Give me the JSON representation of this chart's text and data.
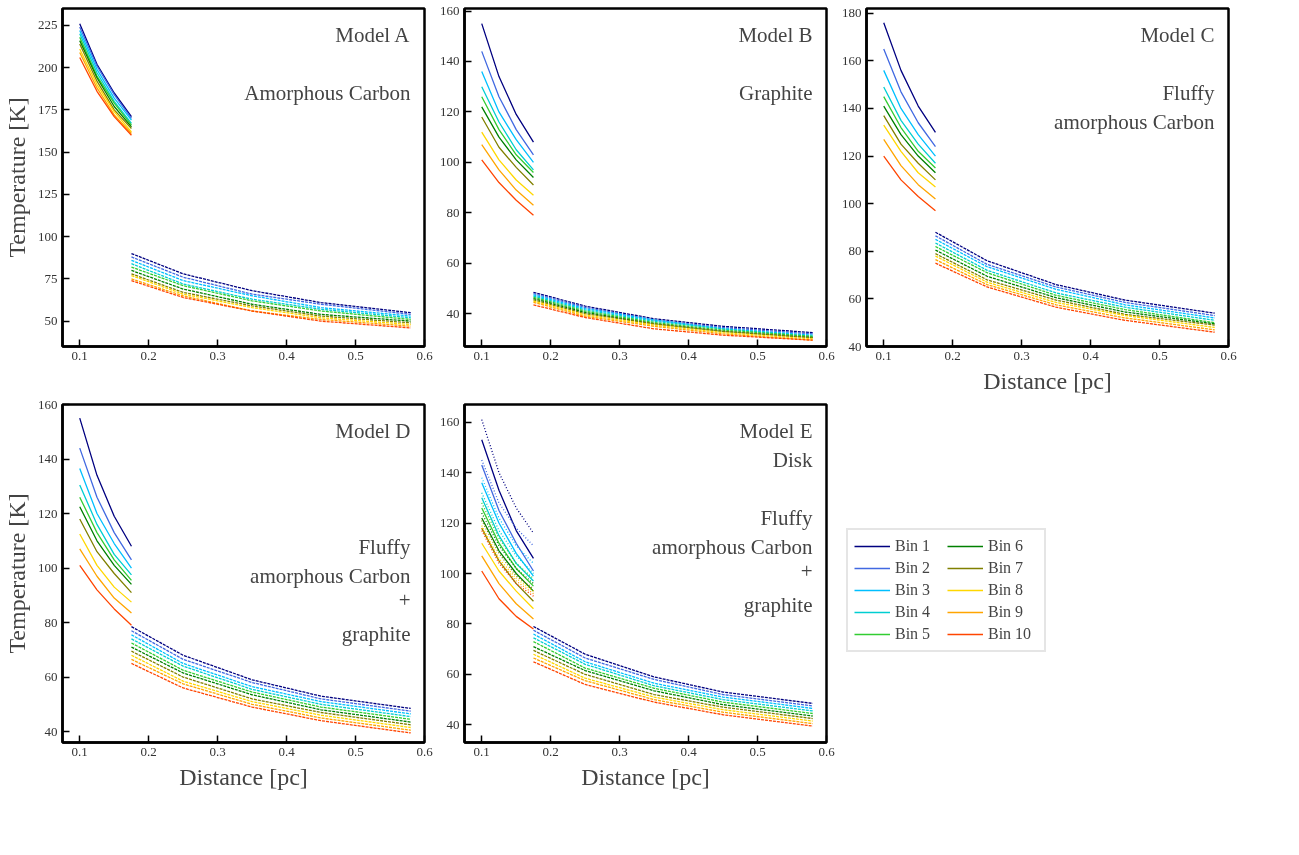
{
  "chart_data": [
    {
      "type": "line",
      "ylabel": "Temperature [K]",
      "annotations": [
        "Model A",
        "Amorphous Carbon"
      ],
      "xlim": [
        0.075,
        0.6
      ],
      "xticks": [
        0.1,
        0.2,
        0.3,
        0.4,
        0.5,
        0.6
      ],
      "ylim": [
        35,
        235
      ],
      "yticks": [
        50,
        75,
        100,
        125,
        150,
        175,
        200,
        225
      ],
      "grid": false,
      "legend": false,
      "series": [
        {
          "color": "#000080",
          "line_style": "solid",
          "x": [
            0.1,
            0.125,
            0.15,
            0.175
          ],
          "values": [
            226,
            202,
            185,
            171
          ]
        },
        {
          "color": "#4169e1",
          "line_style": "solid",
          "x": [
            0.1,
            0.125,
            0.15,
            0.175
          ],
          "values": [
            224,
            201,
            184,
            170
          ]
        },
        {
          "color": "#00bfff",
          "line_style": "solid",
          "x": [
            0.1,
            0.125,
            0.15,
            0.175
          ],
          "values": [
            222,
            199,
            182,
            169
          ]
        },
        {
          "color": "#00ced1",
          "line_style": "solid",
          "x": [
            0.1,
            0.125,
            0.15,
            0.175
          ],
          "values": [
            220,
            197,
            180,
            167
          ]
        },
        {
          "color": "#32cd32",
          "line_style": "solid",
          "x": [
            0.1,
            0.125,
            0.15,
            0.175
          ],
          "values": [
            218,
            195,
            179,
            166
          ]
        },
        {
          "color": "#008000",
          "line_style": "solid",
          "x": [
            0.1,
            0.125,
            0.15,
            0.175
          ],
          "values": [
            216,
            194,
            177,
            165
          ]
        },
        {
          "color": "#808000",
          "line_style": "solid",
          "x": [
            0.1,
            0.125,
            0.15,
            0.175
          ],
          "values": [
            214,
            192,
            175,
            164
          ]
        },
        {
          "color": "#ffd700",
          "line_style": "solid",
          "x": [
            0.1,
            0.125,
            0.15,
            0.175
          ],
          "values": [
            211,
            190,
            174,
            162
          ]
        },
        {
          "color": "#ffa500",
          "line_style": "solid",
          "x": [
            0.1,
            0.125,
            0.15,
            0.175
          ],
          "values": [
            209,
            188,
            172,
            161
          ]
        },
        {
          "color": "#ff4500",
          "line_style": "solid",
          "x": [
            0.1,
            0.125,
            0.15,
            0.175
          ],
          "values": [
            206,
            186,
            171,
            160
          ]
        },
        {
          "color": "#000080",
          "line_style": "dashed",
          "x": [
            0.175,
            0.25,
            0.35,
            0.45,
            0.58
          ],
          "values": [
            90,
            78,
            68,
            61,
            55
          ]
        },
        {
          "color": "#4169e1",
          "line_style": "dashed",
          "x": [
            0.175,
            0.25,
            0.35,
            0.45,
            0.58
          ],
          "values": [
            88,
            76,
            66,
            60,
            54
          ]
        },
        {
          "color": "#00bfff",
          "line_style": "dashed",
          "x": [
            0.175,
            0.25,
            0.35,
            0.45,
            0.58
          ],
          "values": [
            86,
            74,
            65,
            58,
            53
          ]
        },
        {
          "color": "#00ced1",
          "line_style": "dashed",
          "x": [
            0.175,
            0.25,
            0.35,
            0.45,
            0.58
          ],
          "values": [
            84,
            72,
            63,
            57,
            52
          ]
        },
        {
          "color": "#32cd32",
          "line_style": "dashed",
          "x": [
            0.175,
            0.25,
            0.35,
            0.45,
            0.58
          ],
          "values": [
            82,
            71,
            62,
            56,
            51
          ]
        },
        {
          "color": "#008000",
          "line_style": "dashed",
          "x": [
            0.175,
            0.25,
            0.35,
            0.45,
            0.58
          ],
          "values": [
            80,
            69,
            60,
            54,
            50
          ]
        },
        {
          "color": "#808000",
          "line_style": "dashed",
          "x": [
            0.175,
            0.25,
            0.35,
            0.45,
            0.58
          ],
          "values": [
            78,
            67,
            59,
            53,
            49
          ]
        },
        {
          "color": "#ffd700",
          "line_style": "dashed",
          "x": [
            0.175,
            0.25,
            0.35,
            0.45,
            0.58
          ],
          "values": [
            77,
            66,
            58,
            52,
            48
          ]
        },
        {
          "color": "#ffa500",
          "line_style": "dashed",
          "x": [
            0.175,
            0.25,
            0.35,
            0.45,
            0.58
          ],
          "values": [
            75,
            65,
            56,
            51,
            47
          ]
        },
        {
          "color": "#ff4500",
          "line_style": "dashed",
          "x": [
            0.175,
            0.25,
            0.35,
            0.45,
            0.58
          ],
          "values": [
            74,
            64,
            56,
            50,
            46
          ]
        }
      ]
    },
    {
      "type": "line",
      "annotations": [
        "Model B",
        "Graphite"
      ],
      "xlim": [
        0.075,
        0.6
      ],
      "xticks": [
        0.1,
        0.2,
        0.3,
        0.4,
        0.5,
        0.6
      ],
      "ylim": [
        27,
        161
      ],
      "yticks": [
        40,
        60,
        80,
        100,
        120,
        140,
        160
      ],
      "grid": false,
      "legend": false,
      "series": [
        {
          "color": "#000080",
          "line_style": "solid",
          "x": [
            0.1,
            0.125,
            0.15,
            0.175
          ],
          "values": [
            155,
            134,
            119,
            108
          ]
        },
        {
          "color": "#4169e1",
          "line_style": "solid",
          "x": [
            0.1,
            0.125,
            0.15,
            0.175
          ],
          "values": [
            144,
            126,
            113,
            103
          ]
        },
        {
          "color": "#00bfff",
          "line_style": "solid",
          "x": [
            0.1,
            0.125,
            0.15,
            0.175
          ],
          "values": [
            136,
            120,
            109,
            100
          ]
        },
        {
          "color": "#00ced1",
          "line_style": "solid",
          "x": [
            0.1,
            0.125,
            0.15,
            0.175
          ],
          "values": [
            130,
            116,
            105,
            97
          ]
        },
        {
          "color": "#32cd32",
          "line_style": "solid",
          "x": [
            0.1,
            0.125,
            0.15,
            0.175
          ],
          "values": [
            126,
            113,
            103,
            96
          ]
        },
        {
          "color": "#008000",
          "line_style": "solid",
          "x": [
            0.1,
            0.125,
            0.15,
            0.175
          ],
          "values": [
            122,
            110,
            101,
            94
          ]
        },
        {
          "color": "#808000",
          "line_style": "solid",
          "x": [
            0.1,
            0.125,
            0.15,
            0.175
          ],
          "values": [
            118,
            106,
            98,
            91
          ]
        },
        {
          "color": "#ffd700",
          "line_style": "solid",
          "x": [
            0.1,
            0.125,
            0.15,
            0.175
          ],
          "values": [
            112,
            101,
            93,
            87
          ]
        },
        {
          "color": "#ffa500",
          "line_style": "solid",
          "x": [
            0.1,
            0.125,
            0.15,
            0.175
          ],
          "values": [
            107,
            97,
            89,
            83
          ]
        },
        {
          "color": "#ff4500",
          "line_style": "solid",
          "x": [
            0.1,
            0.125,
            0.15,
            0.175
          ],
          "values": [
            101,
            92,
            85,
            79
          ]
        },
        {
          "color": "#000080",
          "line_style": "dashed",
          "x": [
            0.175,
            0.25,
            0.35,
            0.45,
            0.58
          ],
          "values": [
            48.5,
            43,
            38,
            35,
            32.5
          ]
        },
        {
          "color": "#4169e1",
          "line_style": "dashed",
          "x": [
            0.175,
            0.25,
            0.35,
            0.45,
            0.58
          ],
          "values": [
            48,
            42.5,
            37.5,
            34.5,
            32
          ]
        },
        {
          "color": "#00bfff",
          "line_style": "dashed",
          "x": [
            0.175,
            0.25,
            0.35,
            0.45,
            0.58
          ],
          "values": [
            47.5,
            42,
            37.5,
            34,
            31.5
          ]
        },
        {
          "color": "#00ced1",
          "line_style": "dashed",
          "x": [
            0.175,
            0.25,
            0.35,
            0.45,
            0.58
          ],
          "values": [
            47,
            41.5,
            37,
            34,
            31
          ]
        },
        {
          "color": "#32cd32",
          "line_style": "dashed",
          "x": [
            0.175,
            0.25,
            0.35,
            0.45,
            0.58
          ],
          "values": [
            46.5,
            41,
            36.5,
            33.5,
            31
          ]
        },
        {
          "color": "#008000",
          "line_style": "dashed",
          "x": [
            0.175,
            0.25,
            0.35,
            0.45,
            0.58
          ],
          "values": [
            46,
            40.5,
            36,
            33,
            30.5
          ]
        },
        {
          "color": "#808000",
          "line_style": "dashed",
          "x": [
            0.175,
            0.25,
            0.35,
            0.45,
            0.58
          ],
          "values": [
            45.5,
            40,
            36,
            33,
            30.5
          ]
        },
        {
          "color": "#ffd700",
          "line_style": "dashed",
          "x": [
            0.175,
            0.25,
            0.35,
            0.45,
            0.58
          ],
          "values": [
            45,
            39.5,
            35.5,
            32.5,
            30
          ]
        },
        {
          "color": "#ffa500",
          "line_style": "dashed",
          "x": [
            0.175,
            0.25,
            0.35,
            0.45,
            0.58
          ],
          "values": [
            44.5,
            39,
            35,
            32,
            29.5
          ]
        },
        {
          "color": "#ff4500",
          "line_style": "dashed",
          "x": [
            0.175,
            0.25,
            0.35,
            0.45,
            0.58
          ],
          "values": [
            43.5,
            38.5,
            34,
            31.5,
            29.5
          ]
        }
      ]
    },
    {
      "type": "line",
      "xlabel": "Distance [pc]",
      "annotations": [
        "Model C",
        "Fluffy\namorphous Carbon"
      ],
      "xlim": [
        0.075,
        0.6
      ],
      "xticks": [
        0.1,
        0.2,
        0.3,
        0.4,
        0.5,
        0.6
      ],
      "ylim": [
        40,
        182
      ],
      "yticks": [
        40,
        60,
        80,
        100,
        120,
        140,
        160,
        180
      ],
      "grid": false,
      "legend": false,
      "series": [
        {
          "color": "#000080",
          "line_style": "solid",
          "x": [
            0.1,
            0.125,
            0.15,
            0.175
          ],
          "values": [
            176,
            156,
            141,
            130
          ]
        },
        {
          "color": "#4169e1",
          "line_style": "solid",
          "x": [
            0.1,
            0.125,
            0.15,
            0.175
          ],
          "values": [
            165,
            147,
            134,
            124
          ]
        },
        {
          "color": "#00bfff",
          "line_style": "solid",
          "x": [
            0.1,
            0.125,
            0.15,
            0.175
          ],
          "values": [
            156,
            140,
            129,
            120
          ]
        },
        {
          "color": "#00ced1",
          "line_style": "solid",
          "x": [
            0.1,
            0.125,
            0.15,
            0.175
          ],
          "values": [
            149,
            135,
            125,
            117
          ]
        },
        {
          "color": "#32cd32",
          "line_style": "solid",
          "x": [
            0.1,
            0.125,
            0.15,
            0.175
          ],
          "values": [
            145,
            132,
            122,
            115
          ]
        },
        {
          "color": "#008000",
          "line_style": "solid",
          "x": [
            0.1,
            0.125,
            0.15,
            0.175
          ],
          "values": [
            141,
            129,
            120,
            113
          ]
        },
        {
          "color": "#808000",
          "line_style": "solid",
          "x": [
            0.1,
            0.125,
            0.15,
            0.175
          ],
          "values": [
            137,
            125,
            117,
            110
          ]
        },
        {
          "color": "#ffd700",
          "line_style": "solid",
          "x": [
            0.1,
            0.125,
            0.15,
            0.175
          ],
          "values": [
            133,
            122,
            113,
            107
          ]
        },
        {
          "color": "#ffa500",
          "line_style": "solid",
          "x": [
            0.1,
            0.125,
            0.15,
            0.175
          ],
          "values": [
            127,
            116,
            108,
            102
          ]
        },
        {
          "color": "#ff4500",
          "line_style": "solid",
          "x": [
            0.1,
            0.125,
            0.15,
            0.175
          ],
          "values": [
            120,
            110,
            103,
            97
          ]
        },
        {
          "color": "#000080",
          "line_style": "dashed",
          "x": [
            0.175,
            0.25,
            0.35,
            0.45,
            0.58
          ],
          "values": [
            88,
            76,
            66,
            59.5,
            54
          ]
        },
        {
          "color": "#4169e1",
          "line_style": "dashed",
          "x": [
            0.175,
            0.25,
            0.35,
            0.45,
            0.58
          ],
          "values": [
            86.5,
            74.5,
            65,
            58.5,
            53
          ]
        },
        {
          "color": "#00bfff",
          "line_style": "dashed",
          "x": [
            0.175,
            0.25,
            0.35,
            0.45,
            0.58
          ],
          "values": [
            85,
            73.5,
            64,
            57.5,
            52
          ]
        },
        {
          "color": "#00ced1",
          "line_style": "dashed",
          "x": [
            0.175,
            0.25,
            0.35,
            0.45,
            0.58
          ],
          "values": [
            83.5,
            72,
            62.5,
            56.5,
            51
          ]
        },
        {
          "color": "#32cd32",
          "line_style": "dashed",
          "x": [
            0.175,
            0.25,
            0.35,
            0.45,
            0.58
          ],
          "values": [
            82,
            71,
            61.5,
            55.5,
            50
          ]
        },
        {
          "color": "#008000",
          "line_style": "dashed",
          "x": [
            0.175,
            0.25,
            0.35,
            0.45,
            0.58
          ],
          "values": [
            80.5,
            69.5,
            60.5,
            54.5,
            49.5
          ]
        },
        {
          "color": "#808000",
          "line_style": "dashed",
          "x": [
            0.175,
            0.25,
            0.35,
            0.45,
            0.58
          ],
          "values": [
            79,
            68,
            59.5,
            53.5,
            49
          ]
        },
        {
          "color": "#ffd700",
          "line_style": "dashed",
          "x": [
            0.175,
            0.25,
            0.35,
            0.45,
            0.58
          ],
          "values": [
            78,
            67,
            58.5,
            53,
            48
          ]
        },
        {
          "color": "#ffa500",
          "line_style": "dashed",
          "x": [
            0.175,
            0.25,
            0.35,
            0.45,
            0.58
          ],
          "values": [
            76.5,
            66,
            57.5,
            52,
            47
          ]
        },
        {
          "color": "#ff4500",
          "line_style": "dashed",
          "x": [
            0.175,
            0.25,
            0.35,
            0.45,
            0.58
          ],
          "values": [
            75,
            65,
            56.5,
            51,
            46
          ]
        }
      ]
    },
    {
      "type": "line",
      "xlabel": "Distance [pc]",
      "ylabel": "Temperature [K]",
      "annotations": [
        "Model D",
        "\n\nFluffy\namorphous Carbon\n+\ngraphite"
      ],
      "xlim": [
        0.075,
        0.6
      ],
      "xticks": [
        0.1,
        0.2,
        0.3,
        0.4,
        0.5,
        0.6
      ],
      "ylim": [
        36,
        160
      ],
      "yticks": [
        40,
        60,
        80,
        100,
        120,
        140,
        160
      ],
      "grid": false,
      "legend": false,
      "series": [
        {
          "color": "#000080",
          "line_style": "solid",
          "x": [
            0.1,
            0.125,
            0.15,
            0.175
          ],
          "values": [
            155,
            134,
            119,
            108
          ]
        },
        {
          "color": "#4169e1",
          "line_style": "solid",
          "x": [
            0.1,
            0.125,
            0.15,
            0.175
          ],
          "values": [
            144,
            126,
            113,
            103
          ]
        },
        {
          "color": "#00bfff",
          "line_style": "solid",
          "x": [
            0.1,
            0.125,
            0.15,
            0.175
          ],
          "values": [
            136.5,
            120,
            109,
            100
          ]
        },
        {
          "color": "#00ced1",
          "line_style": "solid",
          "x": [
            0.1,
            0.125,
            0.15,
            0.175
          ],
          "values": [
            130.5,
            116,
            105,
            97.5
          ]
        },
        {
          "color": "#32cd32",
          "line_style": "solid",
          "x": [
            0.1,
            0.125,
            0.15,
            0.175
          ],
          "values": [
            126,
            113,
            103,
            95.5
          ]
        },
        {
          "color": "#008000",
          "line_style": "solid",
          "x": [
            0.1,
            0.125,
            0.15,
            0.175
          ],
          "values": [
            122.5,
            110,
            101,
            94
          ]
        },
        {
          "color": "#808000",
          "line_style": "solid",
          "x": [
            0.1,
            0.125,
            0.15,
            0.175
          ],
          "values": [
            118,
            106,
            98,
            91
          ]
        },
        {
          "color": "#ffd700",
          "line_style": "solid",
          "x": [
            0.1,
            0.125,
            0.15,
            0.175
          ],
          "values": [
            112.5,
            101,
            93,
            87.5
          ]
        },
        {
          "color": "#ffa500",
          "line_style": "solid",
          "x": [
            0.1,
            0.125,
            0.15,
            0.175
          ],
          "values": [
            107,
            97,
            89,
            83.5
          ]
        },
        {
          "color": "#ff4500",
          "line_style": "solid",
          "x": [
            0.1,
            0.125,
            0.15,
            0.175
          ],
          "values": [
            101,
            92,
            85,
            79
          ]
        },
        {
          "color": "#000080",
          "line_style": "dashed",
          "x": [
            0.175,
            0.25,
            0.35,
            0.45,
            0.58
          ],
          "values": [
            78.5,
            68,
            59,
            53,
            48.5
          ]
        },
        {
          "color": "#4169e1",
          "line_style": "dashed",
          "x": [
            0.175,
            0.25,
            0.35,
            0.45,
            0.58
          ],
          "values": [
            77,
            66.5,
            58,
            52,
            47.5
          ]
        },
        {
          "color": "#00bfff",
          "line_style": "dashed",
          "x": [
            0.175,
            0.25,
            0.35,
            0.45,
            0.58
          ],
          "values": [
            75.5,
            65,
            56.5,
            51,
            46.5
          ]
        },
        {
          "color": "#00ced1",
          "line_style": "dashed",
          "x": [
            0.175,
            0.25,
            0.35,
            0.45,
            0.58
          ],
          "values": [
            74,
            64,
            55.5,
            50,
            45.5
          ]
        },
        {
          "color": "#32cd32",
          "line_style": "dashed",
          "x": [
            0.175,
            0.25,
            0.35,
            0.45,
            0.58
          ],
          "values": [
            72.5,
            62.5,
            54.5,
            49,
            44.5
          ]
        },
        {
          "color": "#008000",
          "line_style": "dashed",
          "x": [
            0.175,
            0.25,
            0.35,
            0.45,
            0.58
          ],
          "values": [
            71,
            61.5,
            53.5,
            48,
            43.5
          ]
        },
        {
          "color": "#808000",
          "line_style": "dashed",
          "x": [
            0.175,
            0.25,
            0.35,
            0.45,
            0.58
          ],
          "values": [
            69.5,
            60,
            52,
            47,
            42.5
          ]
        },
        {
          "color": "#ffd700",
          "line_style": "dashed",
          "x": [
            0.175,
            0.25,
            0.35,
            0.45,
            0.58
          ],
          "values": [
            68,
            58.5,
            51,
            46,
            41.5
          ]
        },
        {
          "color": "#ffa500",
          "line_style": "dashed",
          "x": [
            0.175,
            0.25,
            0.35,
            0.45,
            0.58
          ],
          "values": [
            66.5,
            57.5,
            50,
            45,
            40.5
          ]
        },
        {
          "color": "#ff4500",
          "line_style": "dashed",
          "x": [
            0.175,
            0.25,
            0.35,
            0.45,
            0.58
          ],
          "values": [
            65,
            56,
            49,
            44,
            39.5
          ]
        }
      ]
    },
    {
      "type": "line",
      "xlabel": "Distance [pc]",
      "annotations": [
        "Model E\nDisk",
        "Fluffy\namorphous Carbon\n+\ngraphite"
      ],
      "xlim": [
        0.075,
        0.6
      ],
      "xticks": [
        0.1,
        0.2,
        0.3,
        0.4,
        0.5,
        0.6
      ],
      "ylim": [
        33,
        167
      ],
      "yticks": [
        40,
        60,
        80,
        100,
        120,
        140,
        160
      ],
      "grid": false,
      "legend": "right",
      "series": [
        {
          "name": "Bin 1",
          "color": "#000080",
          "line_style": "solid",
          "x": [
            0.1,
            0.125,
            0.15,
            0.175
          ],
          "values": [
            153,
            133,
            117,
            106
          ]
        },
        {
          "name": "Bin 2",
          "color": "#4169e1",
          "line_style": "solid",
          "x": [
            0.1,
            0.125,
            0.15,
            0.175
          ],
          "values": [
            143,
            125,
            112,
            101
          ]
        },
        {
          "name": "Bin 3",
          "color": "#00bfff",
          "line_style": "solid",
          "x": [
            0.1,
            0.125,
            0.15,
            0.175
          ],
          "values": [
            136,
            120,
            108,
            99
          ]
        },
        {
          "name": "Bin 4",
          "color": "#00ced1",
          "line_style": "solid",
          "x": [
            0.1,
            0.125,
            0.15,
            0.175
          ],
          "values": [
            130,
            115,
            104,
            97
          ]
        },
        {
          "name": "Bin 5",
          "color": "#32cd32",
          "line_style": "solid",
          "x": [
            0.1,
            0.125,
            0.15,
            0.175
          ],
          "values": [
            126,
            112,
            102,
            95
          ]
        },
        {
          "name": "Bin 6",
          "color": "#008000",
          "line_style": "solid",
          "x": [
            0.1,
            0.125,
            0.15,
            0.175
          ],
          "values": [
            122,
            109,
            100,
            93
          ]
        },
        {
          "name": "Bin 7",
          "color": "#808000",
          "line_style": "solid",
          "x": [
            0.1,
            0.125,
            0.15,
            0.175
          ],
          "values": [
            118,
            105,
            96,
            89
          ]
        },
        {
          "name": "Bin 8",
          "color": "#ffd700",
          "line_style": "solid",
          "x": [
            0.1,
            0.125,
            0.15,
            0.175
          ],
          "values": [
            112,
            101,
            93,
            86
          ]
        },
        {
          "name": "Bin 9",
          "color": "#ffa500",
          "line_style": "solid",
          "x": [
            0.1,
            0.125,
            0.15,
            0.175
          ],
          "values": [
            107,
            96,
            88,
            82
          ]
        },
        {
          "name": "Bin 10",
          "color": "#ff4500",
          "line_style": "solid",
          "x": [
            0.1,
            0.125,
            0.15,
            0.175
          ],
          "values": [
            101,
            90,
            83,
            78
          ]
        },
        {
          "color": "#000080",
          "line_style": "dotted",
          "x": [
            0.1,
            0.125,
            0.15,
            0.175
          ],
          "values": [
            161,
            140,
            126,
            116
          ]
        },
        {
          "color": "#4169e1",
          "line_style": "dotted",
          "x": [
            0.1,
            0.125,
            0.15,
            0.175
          ],
          "values": [
            145,
            128,
            118,
            111
          ]
        },
        {
          "color": "#00bfff",
          "line_style": "dotted",
          "x": [
            0.1,
            0.125,
            0.15,
            0.175
          ],
          "values": [
            138,
            122,
            111,
            104
          ]
        },
        {
          "color": "#00ced1",
          "line_style": "dotted",
          "x": [
            0.1,
            0.125,
            0.15,
            0.175
          ],
          "values": [
            132,
            117,
            107,
            100
          ]
        },
        {
          "color": "#32cd32",
          "line_style": "dotted",
          "x": [
            0.1,
            0.125,
            0.15,
            0.175
          ],
          "values": [
            128,
            114,
            104,
            98
          ]
        },
        {
          "color": "#008000",
          "line_style": "dotted",
          "x": [
            0.1,
            0.125,
            0.15,
            0.175
          ],
          "values": [
            124,
            111,
            102,
            96
          ]
        },
        {
          "color": "#808000",
          "line_style": "dotted",
          "x": [
            0.1,
            0.125,
            0.15,
            0.175
          ],
          "values": [
            121,
            108,
            99,
            94
          ]
        },
        {
          "color": "#ffd700",
          "line_style": "dotted",
          "x": [
            0.1,
            0.125,
            0.15,
            0.175
          ],
          "values": [
            119,
            106,
            98,
            93
          ]
        },
        {
          "color": "#ffa500",
          "line_style": "dotted",
          "x": [
            0.1,
            0.125,
            0.15,
            0.175
          ],
          "values": [
            118,
            105,
            97,
            92
          ]
        },
        {
          "color": "#ff4500",
          "line_style": "dotted",
          "x": [
            0.1,
            0.125,
            0.15,
            0.175
          ],
          "values": [
            117,
            104,
            96,
            91
          ]
        },
        {
          "color": "#000080",
          "line_style": "dashed",
          "x": [
            0.175,
            0.25,
            0.35,
            0.45,
            0.58
          ],
          "values": [
            79,
            68,
            59,
            53,
            48.5
          ]
        },
        {
          "color": "#4169e1",
          "line_style": "dashed",
          "x": [
            0.175,
            0.25,
            0.35,
            0.45,
            0.58
          ],
          "values": [
            77.5,
            66.5,
            58,
            52,
            47.5
          ]
        },
        {
          "color": "#00bfff",
          "line_style": "dashed",
          "x": [
            0.175,
            0.25,
            0.35,
            0.45,
            0.58
          ],
          "values": [
            76,
            65,
            56.5,
            51,
            46.5
          ]
        },
        {
          "color": "#00ced1",
          "line_style": "dashed",
          "x": [
            0.175,
            0.25,
            0.35,
            0.45,
            0.58
          ],
          "values": [
            74.5,
            64,
            55.5,
            50,
            45.5
          ]
        },
        {
          "color": "#32cd32",
          "line_style": "dashed",
          "x": [
            0.175,
            0.25,
            0.35,
            0.45,
            0.58
          ],
          "values": [
            73,
            62.5,
            54.5,
            49,
            44.5
          ]
        },
        {
          "color": "#008000",
          "line_style": "dashed",
          "x": [
            0.175,
            0.25,
            0.35,
            0.45,
            0.58
          ],
          "values": [
            71,
            61.5,
            53.5,
            48,
            43.5
          ]
        },
        {
          "color": "#808000",
          "line_style": "dashed",
          "x": [
            0.175,
            0.25,
            0.35,
            0.45,
            0.58
          ],
          "values": [
            69.5,
            60,
            52,
            47,
            42.5
          ]
        },
        {
          "color": "#ffd700",
          "line_style": "dashed",
          "x": [
            0.175,
            0.25,
            0.35,
            0.45,
            0.58
          ],
          "values": [
            68,
            58.5,
            51,
            46,
            41.5
          ]
        },
        {
          "color": "#ffa500",
          "line_style": "dashed",
          "x": [
            0.175,
            0.25,
            0.35,
            0.45,
            0.58
          ],
          "values": [
            66.5,
            57.5,
            50,
            45,
            40.5
          ]
        },
        {
          "color": "#ff4500",
          "line_style": "dashed",
          "x": [
            0.175,
            0.25,
            0.35,
            0.45,
            0.58
          ],
          "values": [
            65,
            56,
            49,
            44,
            39.5
          ]
        }
      ]
    }
  ]
}
